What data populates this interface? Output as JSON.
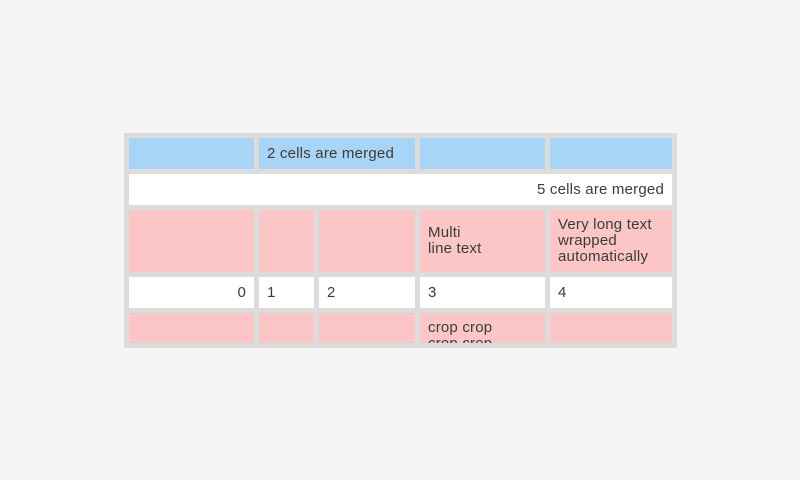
{
  "page": {
    "background_color": "#f5f5f5"
  },
  "table": {
    "frame_color": "#dcdcdc",
    "text_color": "#3b3b3b",
    "cell_colors": {
      "blue": "#a8d4f5",
      "pink": "#fbc6c5",
      "white": "#ffffff"
    },
    "rows": [
      {
        "cells": [
          {
            "text": ""
          },
          {
            "text": "2 cells are merged"
          },
          {
            "text": ""
          },
          {
            "text": ""
          }
        ]
      },
      {
        "cells": [
          {
            "text": "5 cells are merged"
          }
        ]
      },
      {
        "cells": [
          {
            "text": ""
          },
          {
            "text": ""
          },
          {
            "text": ""
          },
          {
            "text": "Multi\nline text"
          },
          {
            "text": "Very long text wrapped automatically"
          }
        ]
      },
      {
        "cells": [
          {
            "text": "0"
          },
          {
            "text": "1"
          },
          {
            "text": "2"
          },
          {
            "text": "3"
          },
          {
            "text": "4"
          }
        ]
      },
      {
        "cells": [
          {
            "text": ""
          },
          {
            "text": ""
          },
          {
            "text": ""
          },
          {
            "text": "crop crop\ncrop crop"
          },
          {
            "text": ""
          }
        ]
      }
    ]
  }
}
